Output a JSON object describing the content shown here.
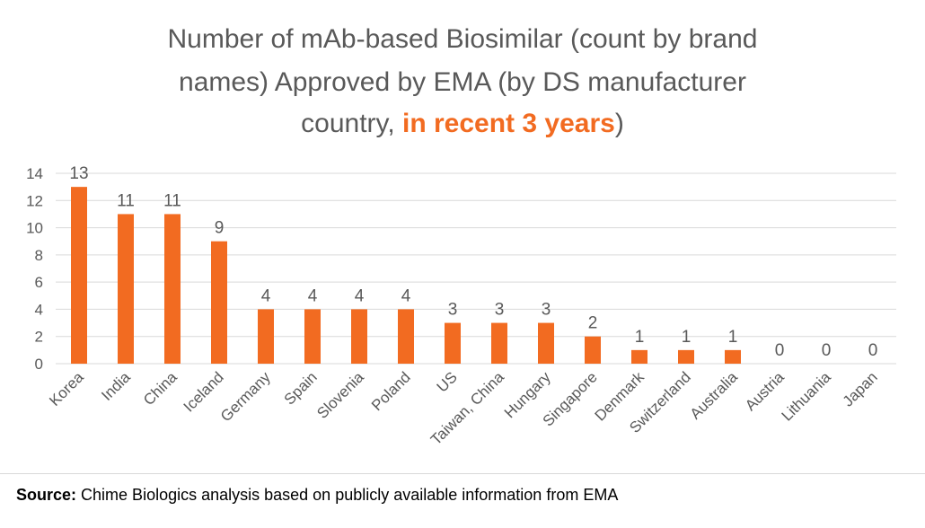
{
  "title": {
    "line1": "Number of mAb-based Biosimilar (count by brand",
    "line2": "names) Approved by EMA (by DS manufacturer",
    "line3_prefix": "country, ",
    "line3_highlight": "in recent 3 years",
    "line3_suffix": ")"
  },
  "source": {
    "label": "Source:",
    "text": "Chime Biologics analysis based on publicly available information from EMA"
  },
  "colors": {
    "bar": "#F26B21",
    "accent_text": "#F26B21",
    "grid": "#d9d9d9",
    "text": "#595959"
  },
  "chart_data": {
    "type": "bar",
    "categories": [
      "Korea",
      "India",
      "China",
      "Iceland",
      "Germany",
      "Spain",
      "Slovenia",
      "Poland",
      "US",
      "Taiwan, China",
      "Hungary",
      "Singapore",
      "Denmark",
      "Switzerland",
      "Australia",
      "Austria",
      "Lithuania",
      "Japan"
    ],
    "values": [
      13,
      11,
      11,
      9,
      4,
      4,
      4,
      4,
      3,
      3,
      3,
      2,
      1,
      1,
      1,
      0,
      0,
      0
    ],
    "ylim": [
      0,
      14
    ],
    "yticks": [
      "0",
      "2",
      "4",
      "6",
      "8",
      "10",
      "12",
      "14"
    ],
    "xlabel": "",
    "ylabel": "",
    "grid": true,
    "data_labels": true,
    "legend": "none"
  }
}
